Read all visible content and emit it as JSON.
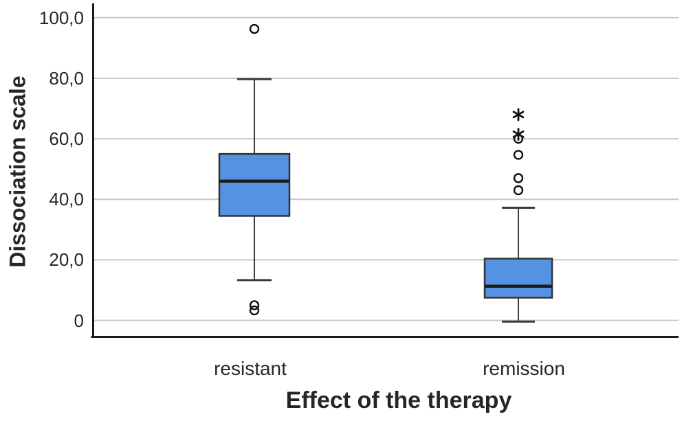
{
  "chart_data": {
    "type": "boxplot",
    "title": "",
    "ylabel": "Dissociation scale",
    "xlabel": "Effect of the therapy",
    "categories": [
      "resistant",
      "remission"
    ],
    "y_ticks": [
      {
        "label": "100,0",
        "value": 100
      },
      {
        "label": "80,0",
        "value": 80
      },
      {
        "label": "60,0",
        "value": 60
      },
      {
        "label": "40,0",
        "value": 40
      },
      {
        "label": "20,0",
        "value": 20
      },
      {
        "label": "0",
        "value": 0
      }
    ],
    "ylim": [
      -5.5,
      104.8
    ],
    "grid": true,
    "legend": false,
    "series": [
      {
        "name": "resistant",
        "q1": 34.5,
        "median": 46.0,
        "q3": 55.0,
        "whisker_low": 13.3,
        "whisker_high": 79.7,
        "outliers": [
          96.3,
          5.0,
          3.3
        ],
        "extreme_outliers": []
      },
      {
        "name": "remission",
        "q1": 7.5,
        "median": 11.3,
        "q3": 20.4,
        "whisker_low": -0.4,
        "whisker_high": 37.2,
        "outliers": [
          60.0,
          54.7,
          47.0,
          43.0
        ],
        "extreme_outliers": [
          68.0,
          61.5
        ]
      }
    ],
    "colors": {
      "box_fill": "#5592e2",
      "box_border": "#333333",
      "median": "#1c1c1c",
      "whisker": "#3a3a3a",
      "gridline": "#c8c8c8",
      "axis": "#1a1a1a",
      "outlier": "#111111",
      "text": "#262626"
    }
  }
}
